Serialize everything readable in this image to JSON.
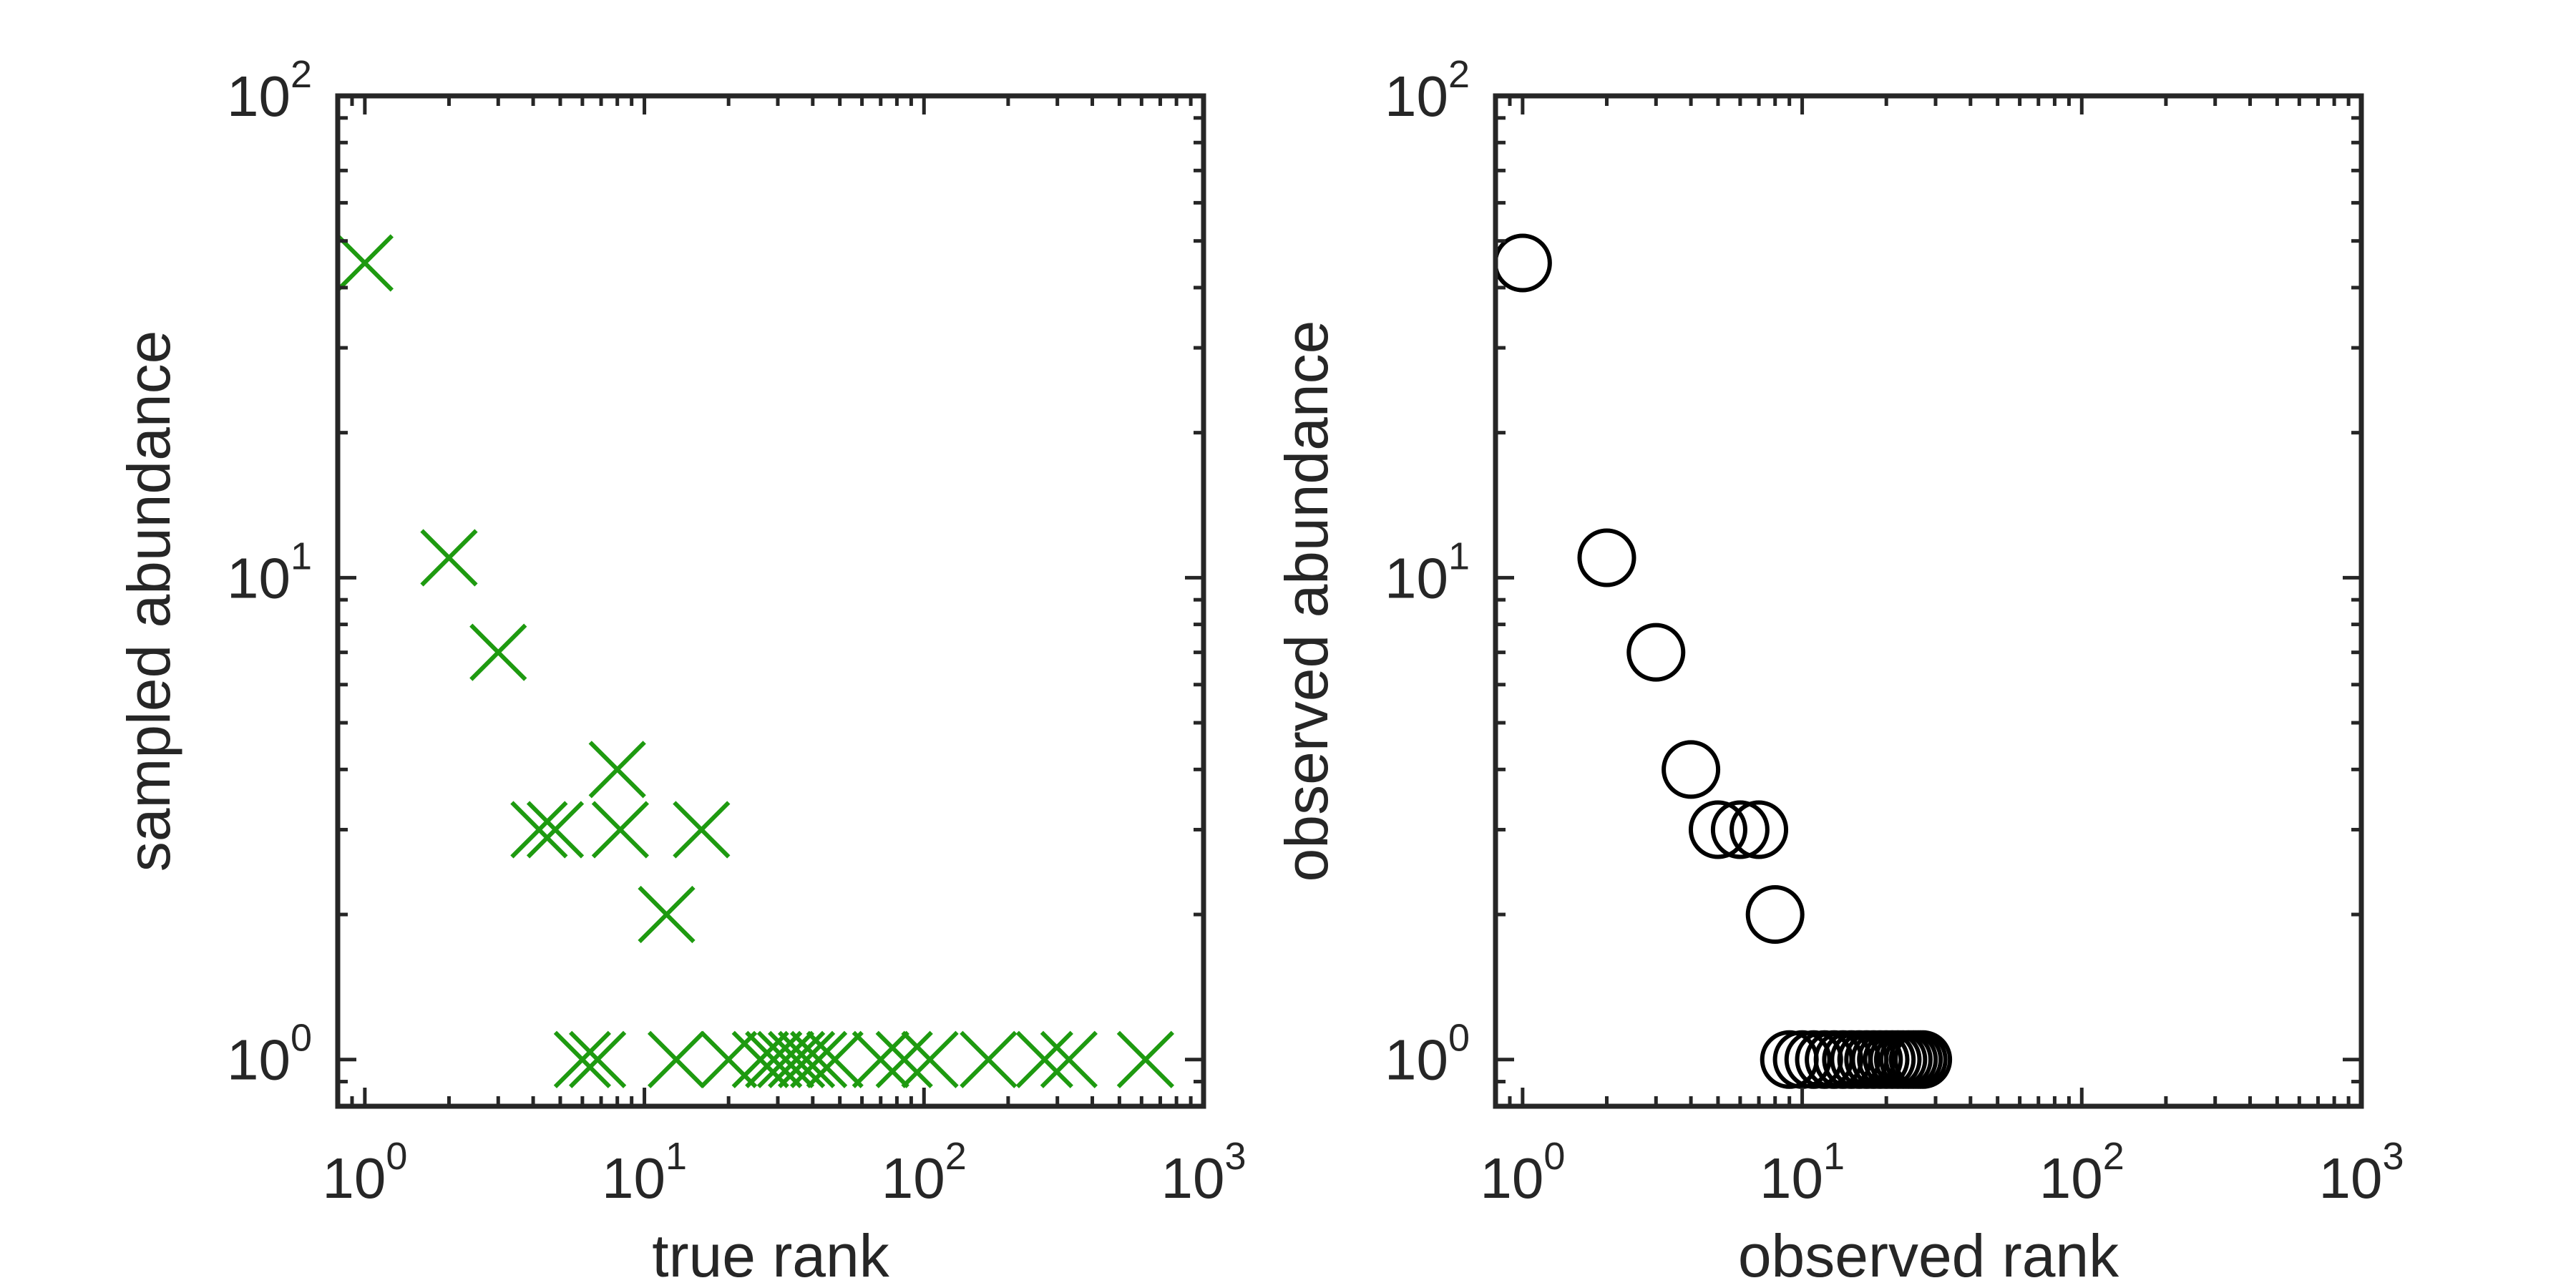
{
  "chart_data": [
    {
      "type": "scatter",
      "title": "",
      "xlabel": "true rank",
      "ylabel": "sampled abundance",
      "xscale": "log",
      "yscale": "log",
      "xlim": [
        0.8,
        1000
      ],
      "ylim": [
        0.8,
        100
      ],
      "grid": false,
      "legend": "none",
      "box": true,
      "marker": "x",
      "color": "#1e9a10",
      "xticks": [
        {
          "base": "10",
          "exp": "0",
          "value": 1
        },
        {
          "base": "10",
          "exp": "1",
          "value": 10
        },
        {
          "base": "10",
          "exp": "2",
          "value": 100
        },
        {
          "base": "10",
          "exp": "3",
          "value": 1000
        }
      ],
      "yticks": [
        {
          "base": "10",
          "exp": "0",
          "value": 1
        },
        {
          "base": "10",
          "exp": "1",
          "value": 10
        },
        {
          "base": "10",
          "exp": "2",
          "value": 100
        }
      ],
      "points": [
        {
          "x": 1,
          "y": 45
        },
        {
          "x": 2,
          "y": 11
        },
        {
          "x": 3,
          "y": 7
        },
        {
          "x": 4.2,
          "y": 3
        },
        {
          "x": 4.8,
          "y": 3
        },
        {
          "x": 8,
          "y": 4
        },
        {
          "x": 8.2,
          "y": 3
        },
        {
          "x": 12,
          "y": 2
        },
        {
          "x": 16,
          "y": 3
        },
        {
          "x": 6,
          "y": 1
        },
        {
          "x": 6.8,
          "y": 1
        },
        {
          "x": 13,
          "y": 1
        },
        {
          "x": 20,
          "y": 1
        },
        {
          "x": 26,
          "y": 1
        },
        {
          "x": 29,
          "y": 1
        },
        {
          "x": 32,
          "y": 1
        },
        {
          "x": 35,
          "y": 1
        },
        {
          "x": 38,
          "y": 1
        },
        {
          "x": 42,
          "y": 1
        },
        {
          "x": 48,
          "y": 1
        },
        {
          "x": 70,
          "y": 1
        },
        {
          "x": 85,
          "y": 1
        },
        {
          "x": 105,
          "y": 1
        },
        {
          "x": 170,
          "y": 1
        },
        {
          "x": 270,
          "y": 1
        },
        {
          "x": 330,
          "y": 1
        },
        {
          "x": 620,
          "y": 1
        }
      ]
    },
    {
      "type": "scatter",
      "title": "",
      "xlabel": "observed rank",
      "ylabel": "observed abundance",
      "xscale": "log",
      "yscale": "log",
      "xlim": [
        0.8,
        1000
      ],
      "ylim": [
        0.8,
        100
      ],
      "grid": false,
      "legend": "none",
      "box": true,
      "marker": "o",
      "color": "#000000",
      "xticks": [
        {
          "base": "10",
          "exp": "0",
          "value": 1
        },
        {
          "base": "10",
          "exp": "1",
          "value": 10
        },
        {
          "base": "10",
          "exp": "2",
          "value": 100
        },
        {
          "base": "10",
          "exp": "3",
          "value": 1000
        }
      ],
      "yticks": [
        {
          "base": "10",
          "exp": "0",
          "value": 1
        },
        {
          "base": "10",
          "exp": "1",
          "value": 10
        },
        {
          "base": "10",
          "exp": "2",
          "value": 100
        }
      ],
      "points": [
        {
          "x": 1,
          "y": 45
        },
        {
          "x": 2,
          "y": 11
        },
        {
          "x": 3,
          "y": 7
        },
        {
          "x": 4,
          "y": 4
        },
        {
          "x": 5,
          "y": 3
        },
        {
          "x": 6,
          "y": 3
        },
        {
          "x": 7,
          "y": 3
        },
        {
          "x": 8,
          "y": 2
        },
        {
          "x": 9,
          "y": 1
        },
        {
          "x": 10,
          "y": 1
        },
        {
          "x": 11,
          "y": 1
        },
        {
          "x": 12,
          "y": 1
        },
        {
          "x": 13,
          "y": 1
        },
        {
          "x": 14,
          "y": 1
        },
        {
          "x": 15,
          "y": 1
        },
        {
          "x": 16,
          "y": 1
        },
        {
          "x": 17,
          "y": 1
        },
        {
          "x": 18,
          "y": 1
        },
        {
          "x": 19,
          "y": 1
        },
        {
          "x": 20,
          "y": 1
        },
        {
          "x": 21,
          "y": 1
        },
        {
          "x": 22,
          "y": 1
        },
        {
          "x": 23,
          "y": 1
        },
        {
          "x": 24,
          "y": 1
        },
        {
          "x": 25,
          "y": 1
        },
        {
          "x": 26,
          "y": 1
        },
        {
          "x": 27,
          "y": 1
        }
      ]
    }
  ]
}
